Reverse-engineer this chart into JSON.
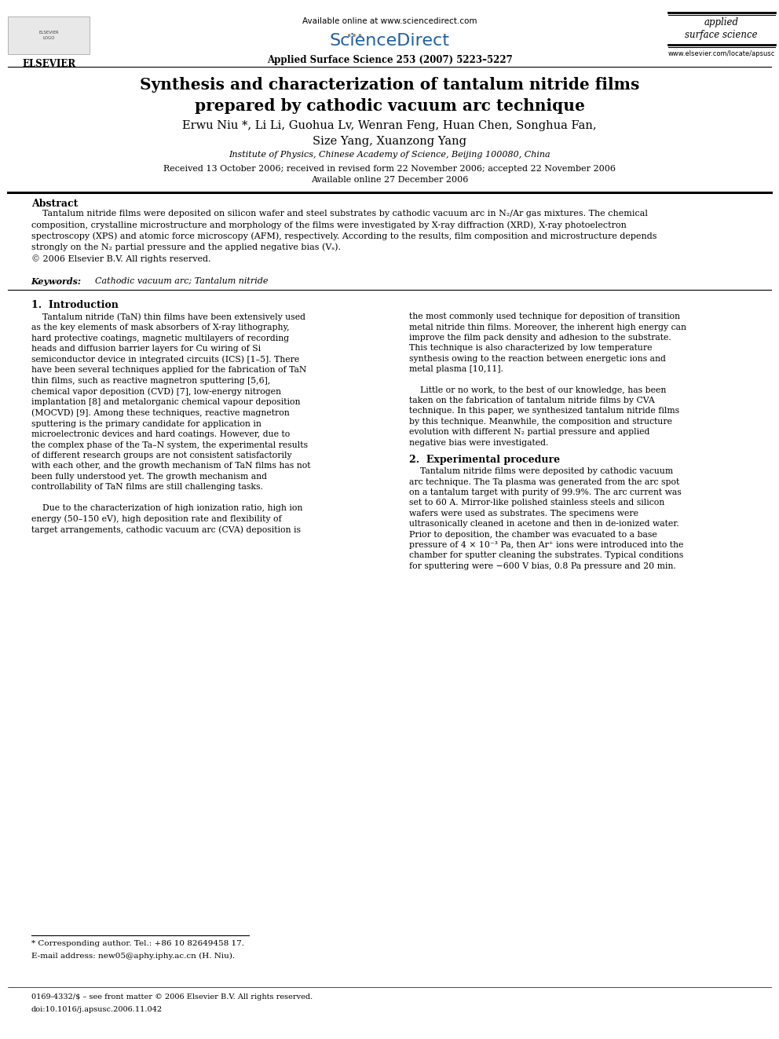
{
  "page_width": 9.92,
  "page_height": 13.23,
  "bg_color": "#ffffff",
  "header": {
    "available_online": "Available online at www.sciencedirect.com",
    "journal_line": "Applied Surface Science 253 (2007) 5223–5227",
    "journal_name_line1": "applied",
    "journal_name_line2": "surface science",
    "website": "www.elsevier.com/locate/apsusc"
  },
  "title": "Synthesis and characterization of tantalum nitride films\nprepared by cathodic vacuum arc technique",
  "authors": "Erwu Niu *, Li Li, Guohua Lv, Wenran Feng, Huan Chen, Songhua Fan,\nSize Yang, Xuanzong Yang",
  "affiliation": "Institute of Physics, Chinese Academy of Science, Beijing 100080, China",
  "dates": "Received 13 October 2006; received in revised form 22 November 2006; accepted 22 November 2006\nAvailable online 27 December 2006",
  "abstract_title": "Abstract",
  "abstract_text": "    Tantalum nitride films were deposited on silicon wafer and steel substrates by cathodic vacuum arc in N₂/Ar gas mixtures. The chemical\ncomposition, crystalline microstructure and morphology of the films were investigated by X-ray diffraction (XRD), X-ray photoelectron\nspectroscopy (XPS) and atomic force microscopy (AFM), respectively. According to the results, film composition and microstructure depends\nstrongly on the N₂ partial pressure and the applied negative bias (Vₛ).\n© 2006 Elsevier B.V. All rights reserved.",
  "keywords_label": "Keywords:",
  "keywords_text": "  Cathodic vacuum arc; Tantalum nitride",
  "section1_title": "1.  Introduction",
  "section1_col1": "    Tantalum nitride (TaN) thin films have been extensively used\nas the key elements of mask absorbers of X-ray lithography,\nhard protective coatings, magnetic multilayers of recording\nheads and diffusion barrier layers for Cu wiring of Si\nsemiconductor device in integrated circuits (ICS) [1–5]. There\nhave been several techniques applied for the fabrication of TaN\nthin films, such as reactive magnetron sputtering [5,6],\nchemical vapor deposition (CVD) [7], low-energy nitrogen\nimplantation [8] and metalorganic chemical vapour deposition\n(MOCVD) [9]. Among these techniques, reactive magnetron\nsputtering is the primary candidate for application in\nmicroelectronic devices and hard coatings. However, due to\nthe complex phase of the Ta–N system, the experimental results\nof different research groups are not consistent satisfactorily\nwith each other, and the growth mechanism of TaN films has not\nbeen fully understood yet. The growth mechanism and\ncontrollability of TaN films are still challenging tasks.\n\n    Due to the characterization of high ionization ratio, high ion\nenergy (50–150 eV), high deposition rate and flexibility of\ntarget arrangements, cathodic vacuum arc (CVA) deposition is",
  "section1_col2": "the most commonly used technique for deposition of transition\nmetal nitride thin films. Moreover, the inherent high energy can\nimprove the film pack density and adhesion to the substrate.\nThis technique is also characterized by low temperature\nsynthesis owing to the reaction between energetic ions and\nmetal plasma [10,11].\n\n    Little or no work, to the best of our knowledge, has been\ntaken on the fabrication of tantalum nitride films by CVA\ntechnique. In this paper, we synthesized tantalum nitride films\nby this technique. Meanwhile, the composition and structure\nevolution with different N₂ partial pressure and applied\nnegative bias were investigated.",
  "section2_title": "2.  Experimental procedure",
  "section2_col2": "    Tantalum nitride films were deposited by cathodic vacuum\narc technique. The Ta plasma was generated from the arc spot\non a tantalum target with purity of 99.9%. The arc current was\nset to 60 A. Mirror-like polished stainless steels and silicon\nwafers were used as substrates. The specimens were\nultrasonically cleaned in acetone and then in de-ionized water.\nPrior to deposition, the chamber was evacuated to a base\npressure of 4 × 10⁻³ Pa, then Ar⁺ ions were introduced into the\nchamber for sputter cleaning the substrates. Typical conditions\nfor sputtering were −600 V bias, 0.8 Pa pressure and 20 min.",
  "footnote1": "* Corresponding author. Tel.: +86 10 82649458 17.",
  "footnote2": "E-mail address: new05@aphy.iphy.ac.cn (H. Niu).",
  "footer1": "0169-4332/$ – see front matter © 2006 Elsevier B.V. All rights reserved.",
  "footer2": "doi:10.1016/j.apsusc.2006.11.042"
}
